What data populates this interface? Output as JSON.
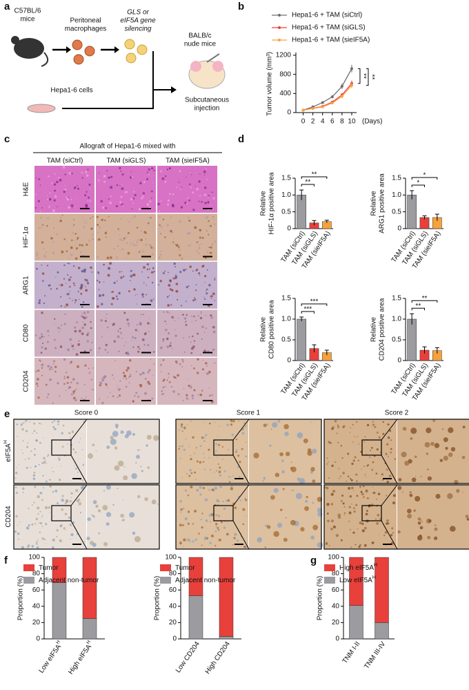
{
  "panel_a": {
    "label": "a",
    "donor": [
      "C57BL/6",
      "mice"
    ],
    "macrophages": [
      "Peritoneal",
      "macrophages"
    ],
    "silencing": [
      "GLS or",
      "eIF5A gene",
      "silencing"
    ],
    "cells": "Hepa1-6 cells",
    "host": [
      "BALB/c",
      "nude mice"
    ],
    "route": [
      "Subcutaneous",
      "injection"
    ]
  },
  "panel_b": {
    "label": "b",
    "chart_data": {
      "type": "line",
      "ylabel": "Tumor volume (mm³)",
      "xlabel": "(Days)",
      "legend": "top",
      "x": [
        0,
        2,
        4,
        6,
        8,
        10
      ],
      "xlim": [
        -1.5,
        11
      ],
      "xticks": [
        0,
        2,
        4,
        6,
        8,
        10
      ],
      "ylim": [
        0,
        1200
      ],
      "yticks": [
        0,
        400,
        800,
        1200
      ],
      "series": [
        {
          "name": "Hepa1-6 + TAM (siCtrl)",
          "color": "#6d6d6d",
          "values": [
            50,
            120,
            210,
            330,
            550,
            920
          ],
          "errors": [
            10,
            20,
            25,
            30,
            60,
            80
          ]
        },
        {
          "name": "Hepa1-6 + TAM (siGLS)",
          "color": "#e8403b",
          "values": [
            50,
            90,
            130,
            220,
            370,
            610
          ],
          "errors": [
            10,
            15,
            20,
            25,
            40,
            60
          ]
        },
        {
          "name": "Hepa1-6 + TAM (sieIF5A)",
          "color": "#f6a23c",
          "values": [
            50,
            85,
            120,
            200,
            340,
            570
          ],
          "errors": [
            10,
            15,
            20,
            25,
            40,
            60
          ]
        }
      ],
      "significance": [
        "**",
        "**"
      ]
    }
  },
  "panel_c": {
    "label": "c",
    "title": "Allograft of Hepa1-6 mixed with",
    "columns": [
      "TAM (siCtrl)",
      "TAM (siGLS)",
      "TAM (sieIF5A)"
    ],
    "rows": [
      "H&E",
      "HIF-1α",
      "ARG1",
      "CD80",
      "CD204"
    ]
  },
  "panel_d": {
    "label": "d",
    "charts": [
      {
        "type": "bar",
        "ylabel": [
          "Relative",
          "HIF-1α positive area"
        ],
        "categories": [
          "TAM (siCtrl)",
          "TAM (siGLS)",
          "TAM (sieIF5A)"
        ],
        "values": [
          1,
          0.17,
          0.21
        ],
        "errors": [
          0.15,
          0.07,
          0.04
        ],
        "colors": [
          "#9b9ba0",
          "#e8403b",
          "#f6a23c"
        ],
        "ylim": [
          0,
          1.5
        ],
        "yticks": [
          0,
          0.5,
          {
            "value": 1,
            "label": "1.0"
          },
          1.5
        ],
        "significance": [
          "**",
          "**"
        ]
      },
      {
        "type": "bar",
        "ylabel": [
          "Relative",
          "ARG1 positive area"
        ],
        "categories": [
          "TAM (siCtrl)",
          "TAM (siGLS)",
          "TAM (sieIF5A)"
        ],
        "values": [
          1,
          0.33,
          0.33
        ],
        "errors": [
          0.13,
          0.05,
          0.1
        ],
        "colors": [
          "#9b9ba0",
          "#e8403b",
          "#f6a23c"
        ],
        "ylim": [
          0,
          1.5
        ],
        "yticks": [
          0,
          0.5,
          {
            "value": 1,
            "label": "1.0"
          },
          1.5
        ],
        "significance": [
          "*",
          "*"
        ]
      },
      {
        "type": "bar",
        "ylabel": [
          "Relative",
          "CD80 positive area"
        ],
        "categories": [
          "TAM (siCtrl)",
          "TAM (siGLS)",
          "TAM (sieIF5A)"
        ],
        "values": [
          1,
          0.29,
          0.19
        ],
        "errors": [
          0.05,
          0.09,
          0.06
        ],
        "colors": [
          "#9b9ba0",
          "#e8403b",
          "#f6a23c"
        ],
        "ylim": [
          0,
          1.5
        ],
        "yticks": [
          0,
          0.5,
          {
            "value": 1,
            "label": "1.0"
          },
          1.5
        ],
        "significance": [
          "***",
          "***"
        ]
      },
      {
        "type": "bar",
        "ylabel": [
          "Relative",
          "CD204 positive area"
        ],
        "categories": [
          "TAM (siCtrl)",
          "TAM (siGLS)",
          "TAM (sieIF5A)"
        ],
        "values": [
          1,
          0.25,
          0.24
        ],
        "errors": [
          0.13,
          0.08,
          0.07
        ],
        "colors": [
          "#9b9ba0",
          "#e8403b",
          "#f6a23c"
        ],
        "ylim": [
          0,
          1.5
        ],
        "yticks": [
          0,
          0.5,
          {
            "value": 1,
            "label": "1.0"
          },
          1.5
        ],
        "significance": [
          "**",
          "**"
        ]
      }
    ]
  },
  "panel_e": {
    "label": "e",
    "columns": [
      "Score 0",
      "Score 1",
      "Score 2"
    ],
    "rows": [
      {
        "text": "eIF5A",
        "sup": "H"
      },
      {
        "text": "CD204"
      }
    ]
  },
  "panel_f": {
    "label": "f",
    "charts": [
      {
        "type": "stacked_bar",
        "ylabel": "Proportion (%)",
        "categories": [
          "Low eIF5A",
          "High eIF5A"
        ],
        "category_superscript": "H",
        "ylim": [
          0,
          100
        ],
        "yticks": [
          0,
          20,
          40,
          60,
          80,
          100
        ],
        "series": [
          {
            "name": "Adjacent non-tumor",
            "color": "#9b9ba0",
            "values": [
              69,
              25
            ]
          },
          {
            "name": "Tumor",
            "color": "#e8403b",
            "values": [
              31,
              75
            ]
          }
        ]
      },
      {
        "type": "stacked_bar",
        "ylabel": "Proportion (%)",
        "categories": [
          "Low CD204",
          "High CD204"
        ],
        "ylim": [
          0,
          100
        ],
        "yticks": [
          0,
          20,
          40,
          60,
          80,
          100
        ],
        "series": [
          {
            "name": "Adjacent non-tumor",
            "color": "#9b9ba0",
            "values": [
              53,
              3
            ]
          },
          {
            "name": "Tumor",
            "color": "#e8403b",
            "values": [
              47,
              97
            ]
          }
        ]
      }
    ]
  },
  "panel_g": {
    "label": "g",
    "charts": [
      {
        "type": "stacked_bar",
        "ylabel": "Proportion (%)",
        "categories": [
          "TNM I-II",
          "TNM III-IV"
        ],
        "ylim": [
          0,
          100
        ],
        "yticks": [
          0,
          20,
          40,
          60,
          80,
          100
        ],
        "series": [
          {
            "name": "Low eIF5A",
            "sup": "H",
            "color": "#9b9ba0",
            "values": [
              41,
              20
            ]
          },
          {
            "name": "High eIF5A",
            "sup": "H",
            "color": "#e8403b",
            "values": [
              59,
              80
            ]
          }
        ]
      }
    ]
  }
}
